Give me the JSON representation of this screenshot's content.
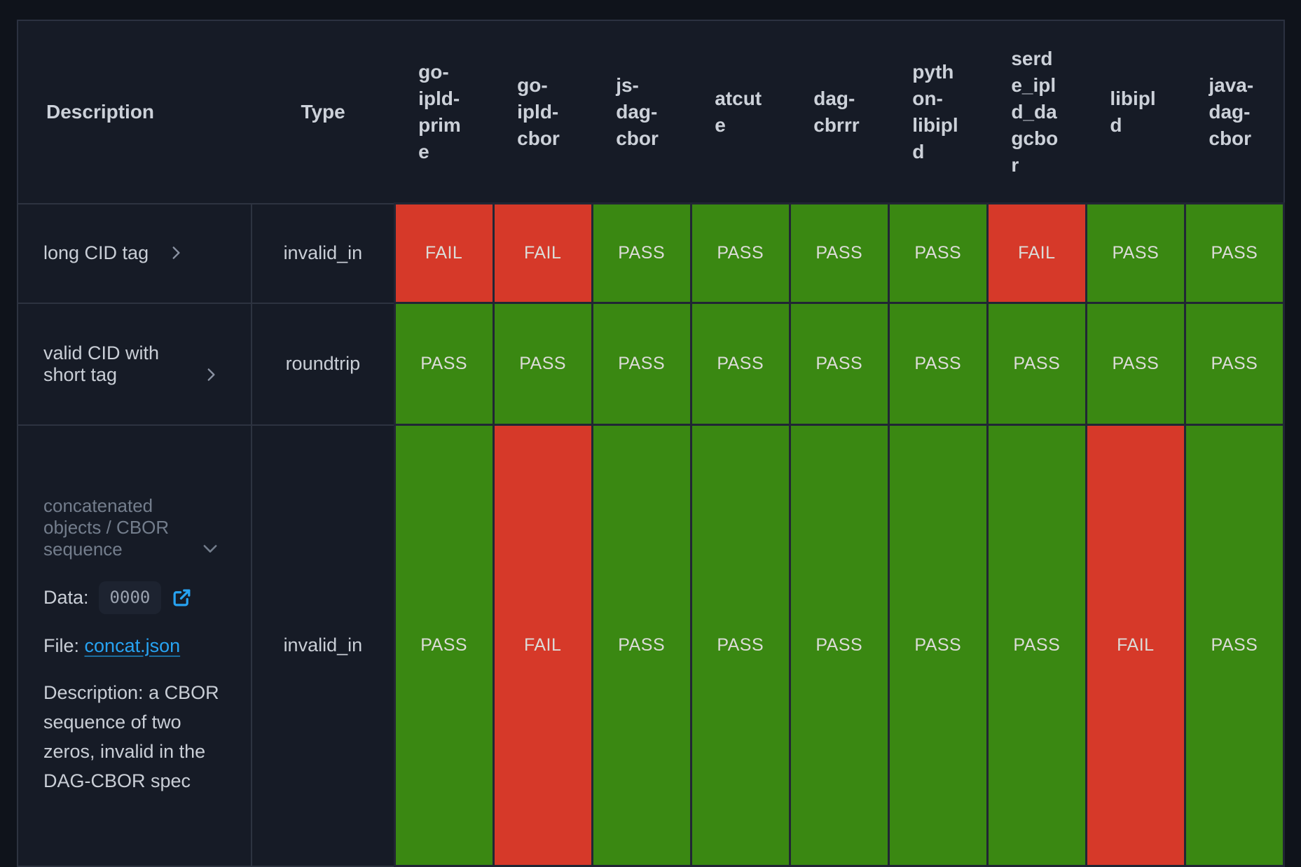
{
  "table": {
    "header": {
      "description_label": "Description",
      "type_label": "Type",
      "implementations": [
        "go-ipld-prime",
        "go-ipld-cbor",
        "js-dag-cbor",
        "atcute",
        "dag-cbrrr",
        "python-libipld",
        "serde_ipld_dagcbor",
        "libipld",
        "java-dag-cbor"
      ]
    },
    "rows": [
      {
        "description": "long CID tag",
        "type": "invalid_in",
        "expanded": false,
        "results": [
          "FAIL",
          "FAIL",
          "PASS",
          "PASS",
          "PASS",
          "PASS",
          "FAIL",
          "PASS",
          "PASS"
        ]
      },
      {
        "description": "valid CID with short tag",
        "type": "roundtrip",
        "expanded": false,
        "results": [
          "PASS",
          "PASS",
          "PASS",
          "PASS",
          "PASS",
          "PASS",
          "PASS",
          "PASS",
          "PASS"
        ]
      },
      {
        "description": "concatenated objects / CBOR sequence",
        "type": "invalid_in",
        "expanded": true,
        "details": {
          "data_label": "Data:",
          "data_value": "0000",
          "file_label": "File:",
          "file_link_text": "concat.json",
          "description_label": "Description:",
          "description_text": "a CBOR sequence of two zeros, invalid in the DAG-CBOR spec"
        },
        "results": [
          "PASS",
          "FAIL",
          "PASS",
          "PASS",
          "PASS",
          "PASS",
          "PASS",
          "FAIL",
          "PASS"
        ]
      }
    ]
  },
  "colors": {
    "pass": "#3a8812",
    "fail": "#d63929",
    "link_blue": "#27a3f2",
    "table_background": "#161b26",
    "page_background": "#0f131b"
  }
}
